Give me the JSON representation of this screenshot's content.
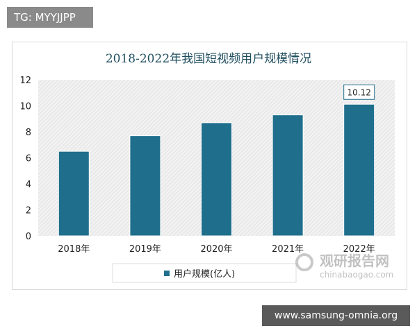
{
  "watermark_top": "TG: MYYJJPP",
  "watermark_bottom": "www.samsung-omnia.org",
  "logo": {
    "name": "观研报告网",
    "url_text": "chinabaogao.com"
  },
  "chart_data": {
    "type": "bar",
    "title": "2018-2022年我国短视频用户规模情况",
    "categories": [
      "2018年",
      "2019年",
      "2020年",
      "2021年",
      "2022年"
    ],
    "series": [
      {
        "name": "用户规模(亿人)",
        "values": [
          6.5,
          7.7,
          8.7,
          9.3,
          10.12
        ]
      }
    ],
    "data_labels": [
      {
        "category": "2022年",
        "text": "10.12"
      }
    ],
    "ylim": [
      0,
      12
    ],
    "yticks": [
      "0",
      "2",
      "4",
      "6",
      "8",
      "10",
      "12"
    ],
    "xlabel": "",
    "ylabel": "",
    "legend": "bottom",
    "grid": false,
    "colors": {
      "bar": "#1f6e8c",
      "plot_bg": "#ececec",
      "title": "#1f4e5f"
    }
  }
}
